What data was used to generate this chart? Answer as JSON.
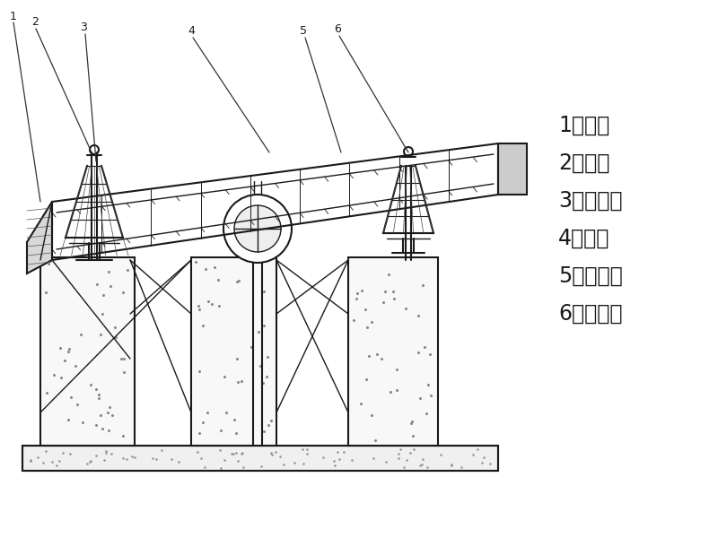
{
  "bg_color": "#ffffff",
  "line_color": "#1a1a1a",
  "legend_items": [
    "1、支架",
    "2、弹簧",
    "3、电动机",
    "4、筛体",
    "5、出料口",
    "6、激振器"
  ],
  "legend_fontsize": 17,
  "figsize": [
    8.0,
    6.0
  ],
  "dpi": 100
}
